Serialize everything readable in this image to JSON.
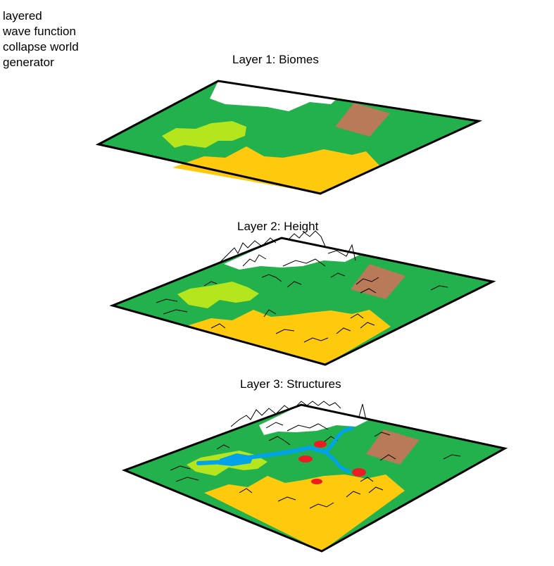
{
  "title": "layered\n wave function\n collapse world\n generator",
  "layers": [
    {
      "label": "Layer 1: Biomes"
    },
    {
      "label": "Layer 2: Height"
    },
    {
      "label": "Layer 3: Structures"
    }
  ],
  "colors": {
    "grass": "#22b14c",
    "light_grass": "#b5e61d",
    "desert": "#ffc90e",
    "snow": "#ffffff",
    "mountain": "#b97a57",
    "river": "#00a2e8",
    "structure": "#ed1c24",
    "outline": "#000000"
  }
}
